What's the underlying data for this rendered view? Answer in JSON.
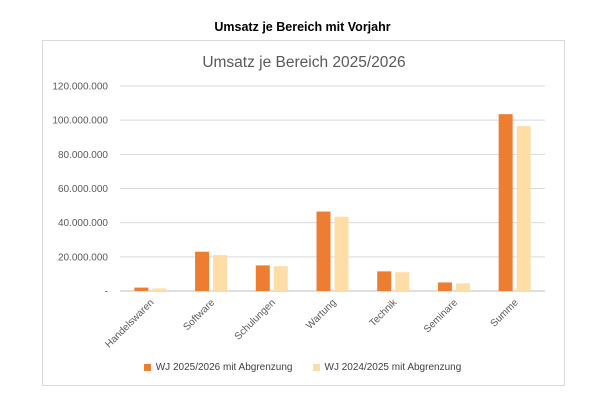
{
  "page": {
    "heading": "Umsatz je Bereich mit Vorjahr"
  },
  "chart_data": {
    "type": "bar",
    "title": "Umsatz je Bereich 2025/2026",
    "xlabel": "",
    "ylabel": "",
    "categories": [
      "Handelswaren",
      "Software",
      "Schulungen",
      "Wartung",
      "Technik",
      "Seminare",
      "Summe"
    ],
    "series": [
      {
        "name": "WJ 2025/2026 mit Abgrenzung",
        "color": "#ED7D31",
        "values": [
          2000000,
          23000000,
          15000000,
          46500000,
          11500000,
          5000000,
          103500000
        ]
      },
      {
        "name": "WJ 2024/2025 mit Abgrenzung",
        "color": "#FFDDA6",
        "values": [
          1500000,
          21000000,
          14500000,
          43500000,
          11000000,
          4500000,
          96500000
        ]
      }
    ],
    "ylim": [
      0,
      120000000
    ],
    "yticks": [
      0,
      20000000,
      40000000,
      60000000,
      80000000,
      100000000,
      120000000
    ],
    "ytick_labels": [
      "-",
      "20.000.000",
      "40.000.000",
      "60.000.000",
      "80.000.000",
      "100.000.000",
      "120.000.000"
    ],
    "grid": true,
    "legend_position": "bottom"
  }
}
